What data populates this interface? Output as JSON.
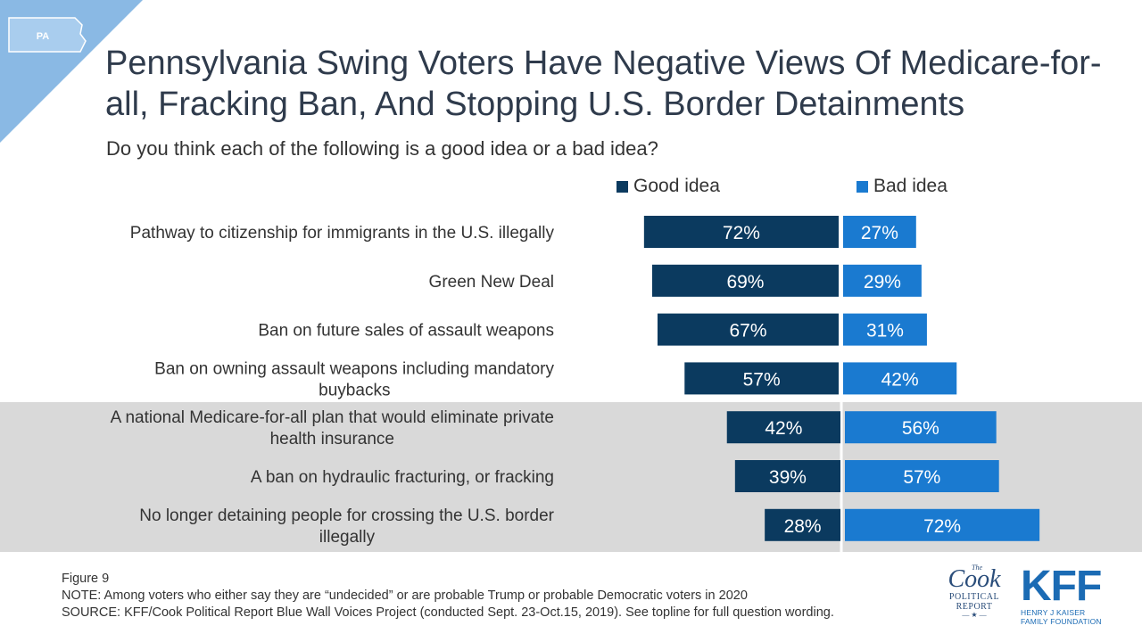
{
  "state_badge": "PA",
  "title": "Pennsylvania Swing Voters Have Negative Views Of Medicare-for-all, Fracking Ban, And Stopping U.S. Border Detainments",
  "subtitle": "Do you think each of the following is a good idea or a bad idea?",
  "colors": {
    "good": "#0b3a5f",
    "bad": "#1a7ad0",
    "corner": "#8ab9e4",
    "highlight": "#d9d9d9"
  },
  "chart_data": {
    "type": "bar",
    "orientation": "horizontal-diverging",
    "categories": [
      "Pathway to citizenship for immigrants in the U.S. illegally",
      "Green New Deal",
      "Ban on future sales of assault weapons",
      "Ban on owning assault weapons including mandatory buybacks",
      "A national Medicare-for-all plan that would eliminate private health insurance",
      "A ban on hydraulic fracturing, or fracking",
      "No longer detaining people for crossing the U.S. border illegally"
    ],
    "category_lines": [
      [
        "Pathway to citizenship for immigrants in the U.S. illegally"
      ],
      [
        "Green New Deal"
      ],
      [
        "Ban on future sales of assault weapons"
      ],
      [
        "Ban on owning assault weapons including mandatory",
        "buybacks"
      ],
      [
        "A national Medicare-for-all plan that would eliminate private",
        "health insurance"
      ],
      [
        "A ban on hydraulic fracturing, or fracking"
      ],
      [
        "No longer detaining people for crossing the U.S. border",
        "illegally"
      ]
    ],
    "series": [
      {
        "name": "Good idea",
        "values": [
          72,
          69,
          67,
          57,
          42,
          39,
          28
        ]
      },
      {
        "name": "Bad idea",
        "values": [
          27,
          29,
          31,
          42,
          56,
          57,
          72
        ]
      }
    ],
    "value_suffix": "%",
    "highlighted_rows": [
      4,
      5,
      6
    ],
    "legend_position": "top"
  },
  "footer": {
    "figure": "Figure 9",
    "note": "NOTE: Among voters who either say they are “undecided” or are probable Trump or probable Democratic voters in 2020",
    "source": "SOURCE: KFF/Cook Political Report Blue Wall Voices Project (conducted Sept. 23-Oct.15, 2019). See topline for full question wording."
  },
  "logos": {
    "cook_the": "The",
    "cook_word": "Cook",
    "cook_sub1": "POLITICAL",
    "cook_sub2": "REPORT",
    "kff_word": "KFF",
    "kff_sub1": "HENRY J KAISER",
    "kff_sub2": "FAMILY FOUNDATION"
  }
}
